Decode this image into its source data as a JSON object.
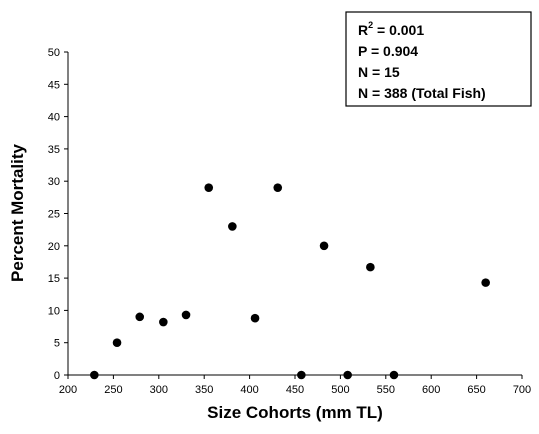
{
  "chart_data": {
    "type": "scatter",
    "xlabel": "Size Cohorts (mm TL)",
    "ylabel": "Percent Mortality",
    "xlim": [
      200,
      700
    ],
    "ylim": [
      0,
      50
    ],
    "x_ticks": [
      200,
      250,
      300,
      350,
      400,
      450,
      500,
      550,
      600,
      650,
      700
    ],
    "y_ticks": [
      0,
      5,
      10,
      15,
      20,
      25,
      30,
      35,
      40,
      45,
      50
    ],
    "x_tick_labels": [
      "200",
      "250",
      "300",
      "350",
      "400",
      "450",
      "500",
      "550",
      "600",
      "650",
      "700"
    ],
    "y_tick_labels": [
      "0",
      "5",
      "10",
      "15",
      "20",
      "25",
      "30",
      "35",
      "40",
      "45",
      "50"
    ],
    "grid": false,
    "legend": "none",
    "annotation": {
      "r2_prefix": "R",
      "r2_sup": "2",
      "r2_value": " = 0.001",
      "p_line": "P = 0.904",
      "n_line": "N = 15",
      "total_line": "N = 388 (Total Fish)"
    },
    "point_color": "#000000",
    "series": [
      {
        "points": [
          {
            "x": 229,
            "y": 0
          },
          {
            "x": 254,
            "y": 5
          },
          {
            "x": 279,
            "y": 9
          },
          {
            "x": 305,
            "y": 8.2
          },
          {
            "x": 330,
            "y": 9.3
          },
          {
            "x": 355,
            "y": 29
          },
          {
            "x": 381,
            "y": 23
          },
          {
            "x": 406,
            "y": 8.8
          },
          {
            "x": 431,
            "y": 29
          },
          {
            "x": 457,
            "y": 0
          },
          {
            "x": 482,
            "y": 20
          },
          {
            "x": 508,
            "y": 0
          },
          {
            "x": 533,
            "y": 16.7
          },
          {
            "x": 559,
            "y": 0
          },
          {
            "x": 660,
            "y": 14.3
          }
        ]
      }
    ]
  }
}
